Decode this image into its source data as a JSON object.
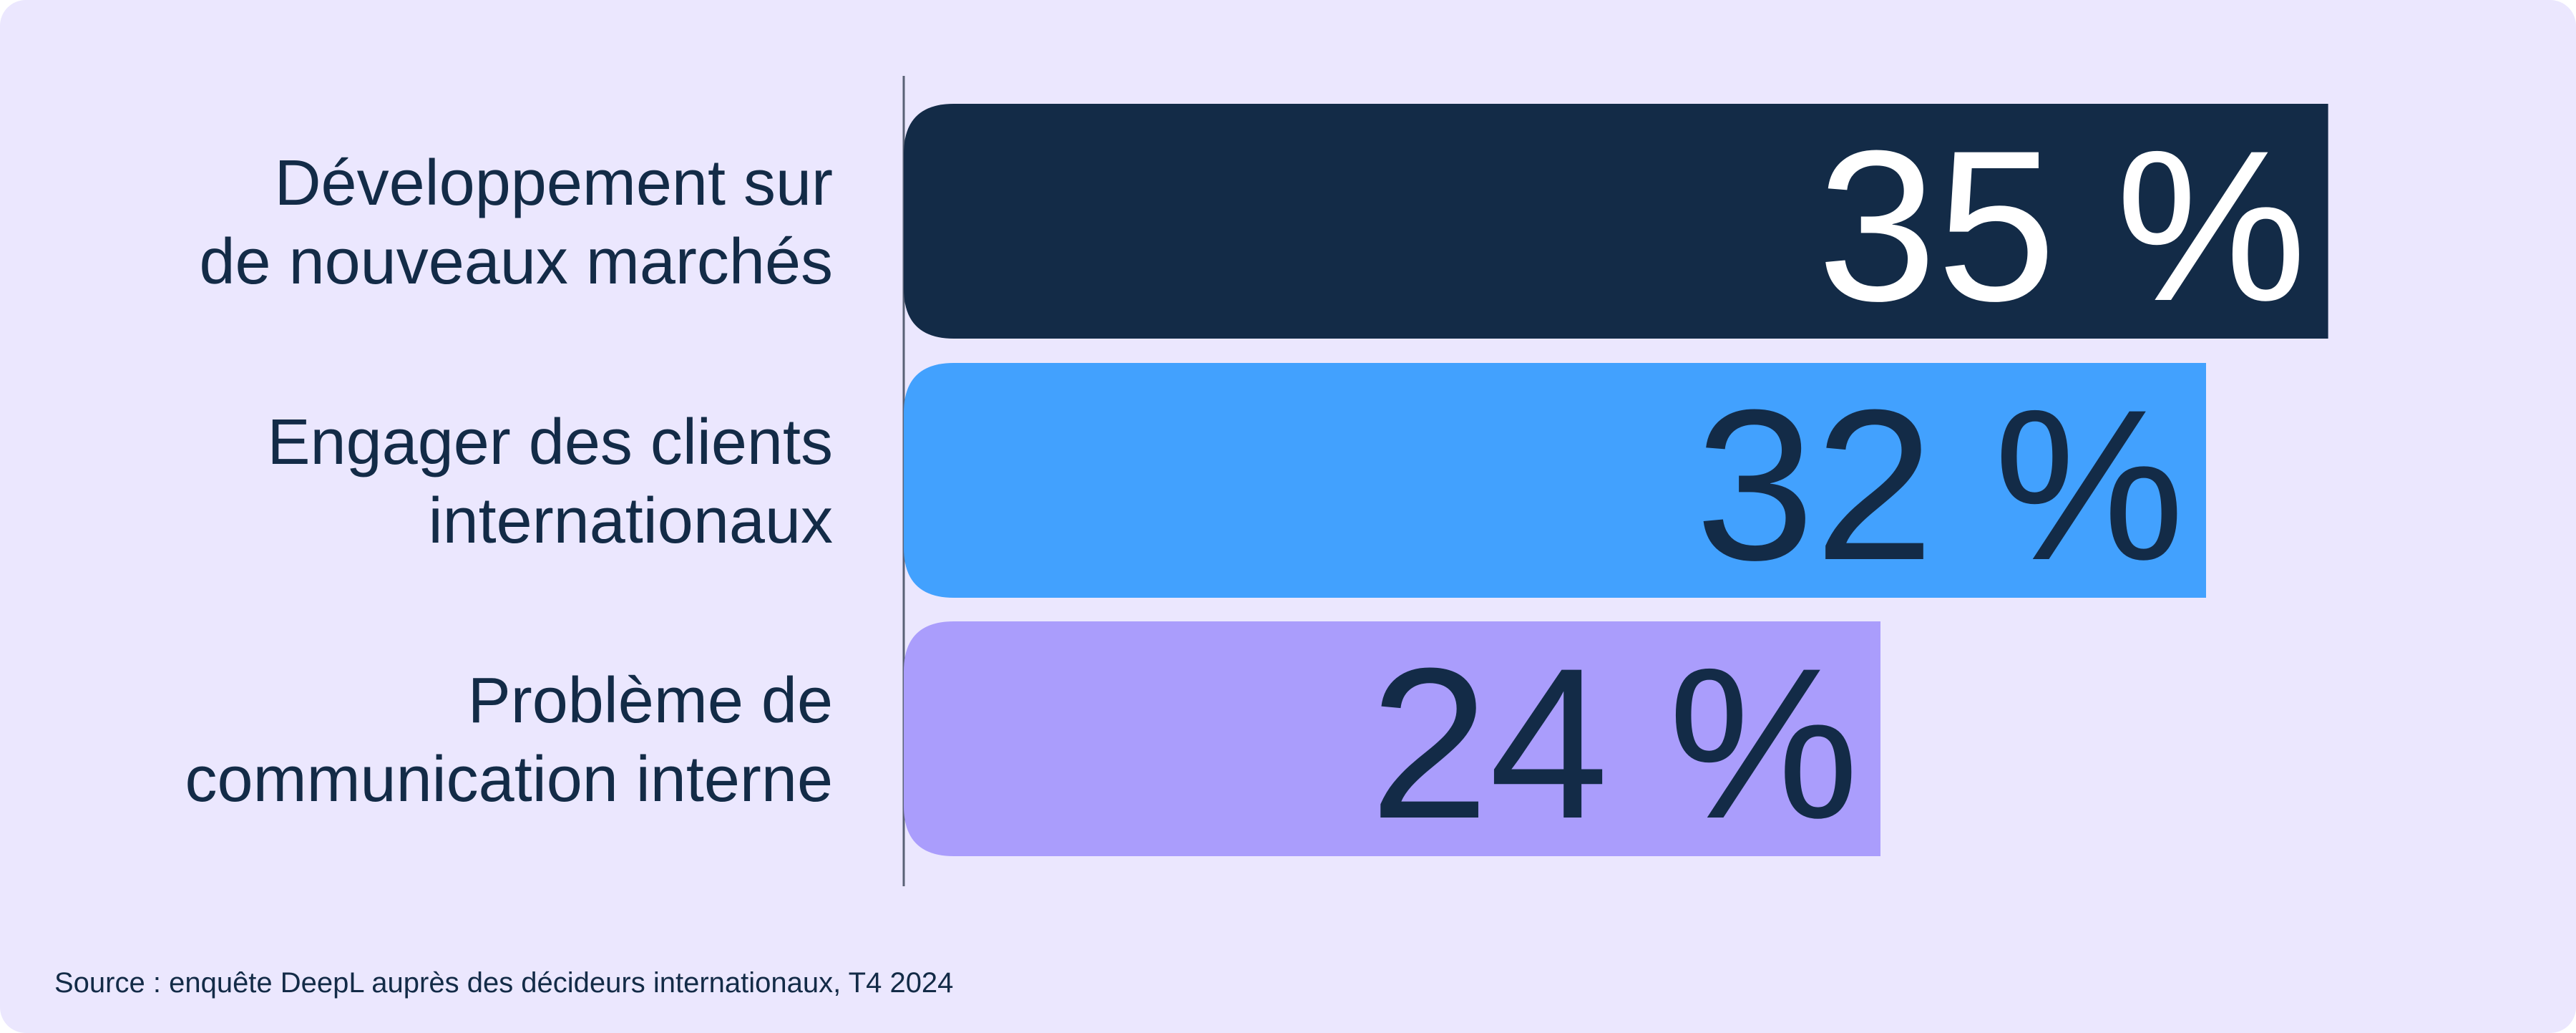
{
  "chart_data": {
    "type": "barh",
    "categories": [
      "Développement sur\nde nouveaux marchés",
      "Engager des clients\ninternationaux",
      "Problème de\ncommunication interne"
    ],
    "values": [
      35,
      32,
      24
    ],
    "value_labels": [
      "35 %",
      "32 %",
      "24 %"
    ],
    "colors": [
      "#132b47",
      "#42a1fe",
      "#aa9dfc"
    ],
    "xlim": [
      0,
      40
    ],
    "source": "Source : enquête DeepL auprès des décideurs internationaux, T4 2024"
  }
}
